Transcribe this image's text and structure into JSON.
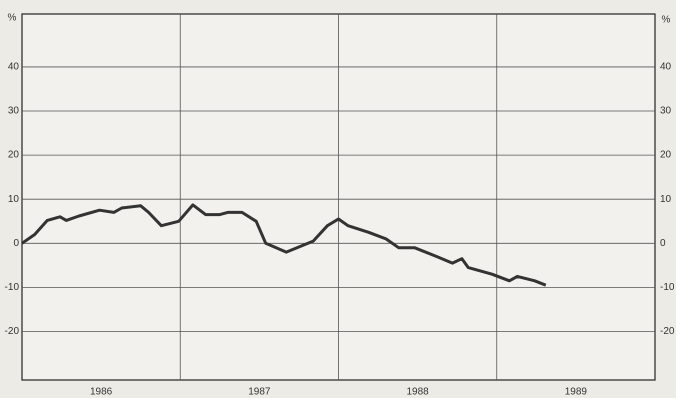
{
  "chart_data": {
    "type": "line",
    "y_label": "%",
    "y2_label": "%",
    "x": [
      1986.0,
      1986.08,
      1986.16,
      1986.24,
      1986.28,
      1986.36,
      1986.49,
      1986.58,
      1986.63,
      1986.75,
      1986.8,
      1986.88,
      1986.99,
      1987.08,
      1987.16,
      1987.25,
      1987.3,
      1987.39,
      1987.48,
      1987.54,
      1987.67,
      1987.84,
      1987.93,
      1988.0,
      1988.06,
      1988.19,
      1988.3,
      1988.38,
      1988.48,
      1988.62,
      1988.72,
      1988.78,
      1988.82,
      1988.97,
      1989.08,
      1989.13,
      1989.24,
      1989.31
    ],
    "values": [
      0,
      2,
      5.2,
      6,
      5.2,
      6.2,
      7.5,
      7,
      8,
      8.5,
      7,
      4,
      5,
      8.7,
      6.5,
      6.5,
      7,
      7,
      5,
      0,
      -2,
      0.5,
      4,
      5.5,
      4,
      2.5,
      1,
      -1,
      -1,
      -3,
      -4.5,
      -3.5,
      -5.5,
      -7,
      -8.5,
      -7.5,
      -8.5,
      -9.5
    ],
    "color": "#333333",
    "xlim": [
      1986,
      1990
    ],
    "xticks": [
      {
        "value": 1986.5,
        "label": "1986"
      },
      {
        "value": 1987.5,
        "label": "1987"
      },
      {
        "value": 1988.5,
        "label": "1988"
      },
      {
        "value": 1989.5,
        "label": "1989"
      }
    ],
    "xgrid": [
      1987,
      1988,
      1989
    ],
    "ylim": [
      -31,
      52
    ],
    "yticks": [
      -20,
      -10,
      0,
      10,
      20,
      30,
      40
    ],
    "grid": true
  }
}
